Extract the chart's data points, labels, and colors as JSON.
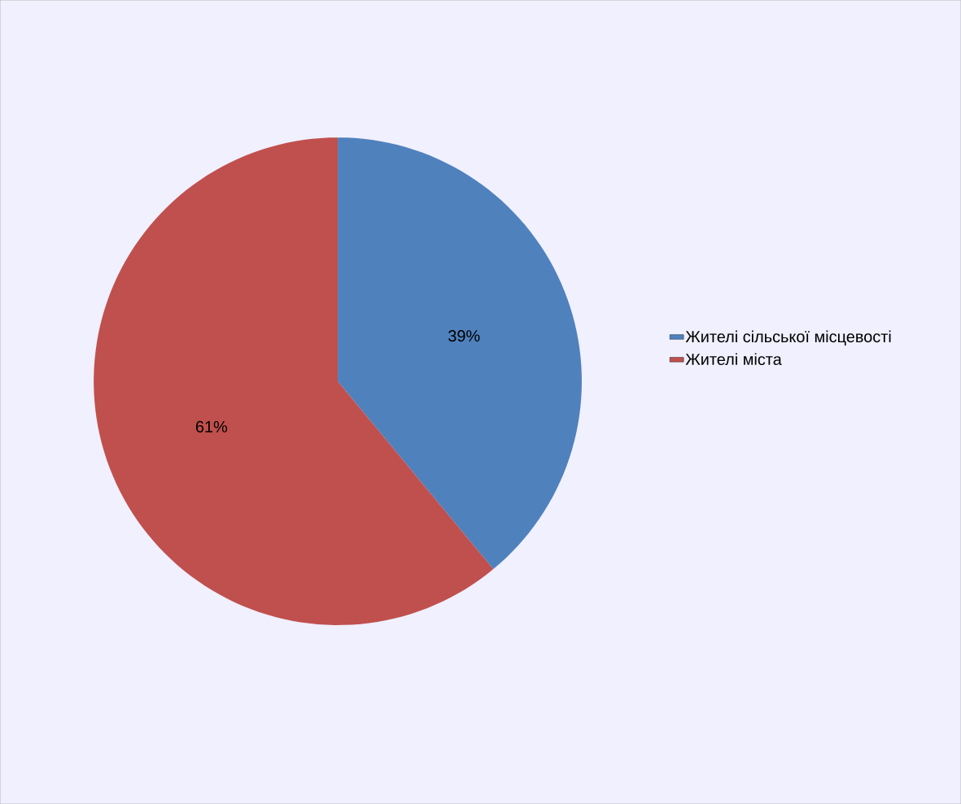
{
  "chart_data": {
    "type": "pie",
    "categories": [
      "Жителі сільської місцевості",
      "Жителі міста"
    ],
    "values": [
      39,
      61
    ],
    "colors": [
      "#4f81bd",
      "#c0504d"
    ],
    "value_labels": [
      "39%",
      "61%"
    ],
    "legend": "right"
  }
}
